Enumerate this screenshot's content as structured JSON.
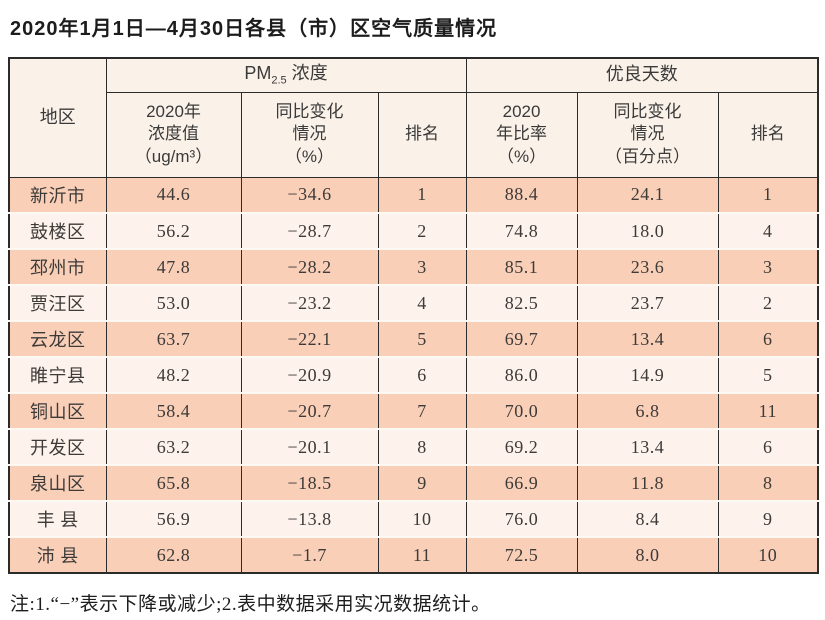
{
  "title": "2020年1月1日—4月30日各县（市）区空气质量情况",
  "table": {
    "header": {
      "region": "地区",
      "pm25_group": {
        "prefix": "PM",
        "subscript": "2.5",
        "suffix": " 浓度"
      },
      "good_days_group": "优良天数",
      "pm_value": {
        "line1": "2020年",
        "line2": "浓度值",
        "line3": "（ug/m³）"
      },
      "pm_change": {
        "line1": "同比变化",
        "line2": "情况",
        "line3": "（%）"
      },
      "pm_rank": "排名",
      "days_ratio": {
        "line1": "2020",
        "line2": "年比率",
        "line3": "（%）"
      },
      "days_change": {
        "line1": "同比变化",
        "line2": "情况",
        "line3": "（百分点）"
      },
      "days_rank": "排名"
    },
    "rows": [
      {
        "region": "新沂市",
        "pm_value": "44.6",
        "pm_change": "−34.6",
        "pm_rank": "1",
        "days_ratio": "88.4",
        "days_change": "24.1",
        "days_rank": "1"
      },
      {
        "region": "鼓楼区",
        "pm_value": "56.2",
        "pm_change": "−28.7",
        "pm_rank": "2",
        "days_ratio": "74.8",
        "days_change": "18.0",
        "days_rank": "4"
      },
      {
        "region": "邳州市",
        "pm_value": "47.8",
        "pm_change": "−28.2",
        "pm_rank": "3",
        "days_ratio": "85.1",
        "days_change": "23.6",
        "days_rank": "3"
      },
      {
        "region": "贾汪区",
        "pm_value": "53.0",
        "pm_change": "−23.2",
        "pm_rank": "4",
        "days_ratio": "82.5",
        "days_change": "23.7",
        "days_rank": "2"
      },
      {
        "region": "云龙区",
        "pm_value": "63.7",
        "pm_change": "−22.1",
        "pm_rank": "5",
        "days_ratio": "69.7",
        "days_change": "13.4",
        "days_rank": "6"
      },
      {
        "region": "睢宁县",
        "pm_value": "48.2",
        "pm_change": "−20.9",
        "pm_rank": "6",
        "days_ratio": "86.0",
        "days_change": "14.9",
        "days_rank": "5"
      },
      {
        "region": "铜山区",
        "pm_value": "58.4",
        "pm_change": "−20.7",
        "pm_rank": "7",
        "days_ratio": "70.0",
        "days_change": "6.8",
        "days_rank": "11"
      },
      {
        "region": "开发区",
        "pm_value": "63.2",
        "pm_change": "−20.1",
        "pm_rank": "8",
        "days_ratio": "69.2",
        "days_change": "13.4",
        "days_rank": "6"
      },
      {
        "region": "泉山区",
        "pm_value": "65.8",
        "pm_change": "−18.5",
        "pm_rank": "9",
        "days_ratio": "66.9",
        "days_change": "11.8",
        "days_rank": "8"
      },
      {
        "region": "丰 县",
        "pm_value": "56.9",
        "pm_change": "−13.8",
        "pm_rank": "10",
        "days_ratio": "76.0",
        "days_change": "8.4",
        "days_rank": "9"
      },
      {
        "region": "沛 县",
        "pm_value": "62.8",
        "pm_change": "−1.7",
        "pm_rank": "11",
        "days_ratio": "72.5",
        "days_change": "8.0",
        "days_rank": "10"
      }
    ]
  },
  "note": "注:1.“−”表示下降或减少;2.表中数据采用实况数据统计。",
  "colors": {
    "row_odd_bg": "#f9cfb8",
    "row_even_bg": "#fdf2ec",
    "header_bg": "#faf1e8",
    "border": "#2b2b2b"
  }
}
